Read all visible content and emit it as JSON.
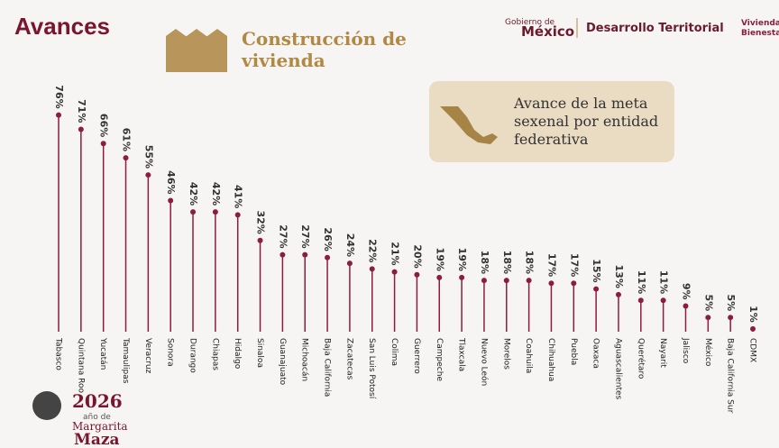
{
  "header": {
    "section": "Avances",
    "topic": "Construcción de vivienda",
    "gov_top": "Gobierno de",
    "gov_main": "México",
    "ministry": "Desarrollo Territorial",
    "program_1": "Vivienda",
    "program_2": "Bienestar",
    "year": "2026",
    "year_note": "año de",
    "person_1": "Margarita",
    "person_2": "Maza"
  },
  "chart_data": {
    "type": "lollipop",
    "title": "Avance de la meta sexenal por entidad federativa",
    "color": "#8b1e3f",
    "categories": [
      "Tabasco",
      "Quintana Roo",
      "Yucatán",
      "Tamaulipas",
      "Veracruz",
      "Sonora",
      "Durango",
      "Chiapas",
      "Hidalgo",
      "Sinaloa",
      "Guanajuato",
      "Michoacán",
      "Baja California",
      "Zacatecas",
      "San Luis Potosí",
      "Colima",
      "Guerrero",
      "Campeche",
      "Tlaxcala",
      "Nuevo León",
      "Morelos",
      "Coahuila",
      "Chihuahua",
      "Puebla",
      "Oaxaca",
      "Aguascalientes",
      "Querétaro",
      "Nayarit",
      "Jalisco",
      "México",
      "Baja California Sur",
      "CDMX"
    ],
    "values": [
      76,
      71,
      66,
      61,
      55,
      46,
      42,
      42,
      41,
      32,
      27,
      27,
      26,
      24,
      22,
      21,
      20,
      19,
      19,
      18,
      18,
      18,
      17,
      17,
      15,
      13,
      11,
      11,
      9,
      5,
      5,
      1
    ],
    "value_labels": [
      "76%",
      "71%",
      "66%",
      "61%",
      "55%",
      "46%",
      "42%",
      "42%",
      "41%",
      "32%",
      "27%",
      "27%",
      "26%",
      "24%",
      "22%",
      "21%",
      "20%",
      "19%",
      "19%",
      "18%",
      "18%",
      "18%",
      "17%",
      "17%",
      "15%",
      "13%",
      "11%",
      "11%",
      "9%",
      "5%",
      "5%",
      "1%"
    ],
    "ylim": [
      0,
      80
    ]
  }
}
